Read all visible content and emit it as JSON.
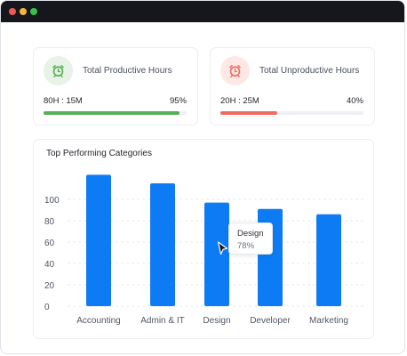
{
  "window": {
    "controls": [
      {
        "name": "close",
        "color": "#ef5b4f"
      },
      {
        "name": "minimize",
        "color": "#f4b63e"
      },
      {
        "name": "maximize",
        "color": "#38c04a"
      }
    ]
  },
  "stats": {
    "productive": {
      "title": "Total Productive Hours",
      "value": "80H : 15M",
      "percent_label": "95%",
      "percent": 95,
      "icon": "alarm-clock-icon",
      "color": "#56ae55"
    },
    "unproductive": {
      "title": "Total Unproductive Hours",
      "value": "20H : 25M",
      "percent_label": "40%",
      "percent": 40,
      "icon": "alarm-clock-icon",
      "color": "#f06a5f"
    }
  },
  "chart": {
    "title": "Top Performing Categories",
    "tooltip": {
      "name": "Design",
      "value": "78%"
    },
    "cursor": "pointer-cursor-icon"
  },
  "chart_data": {
    "type": "bar",
    "title": "Top Performing Categories",
    "categories": [
      "Accounting",
      "Admin & IT",
      "Design",
      "Developer",
      "Marketing"
    ],
    "values": [
      123,
      115,
      97,
      91,
      86
    ],
    "yticks": [
      "0",
      "20",
      "40",
      "60",
      "80",
      "100"
    ],
    "ylim": [
      0,
      125
    ],
    "grid": true,
    "bar_color": "#0d7bf4"
  }
}
